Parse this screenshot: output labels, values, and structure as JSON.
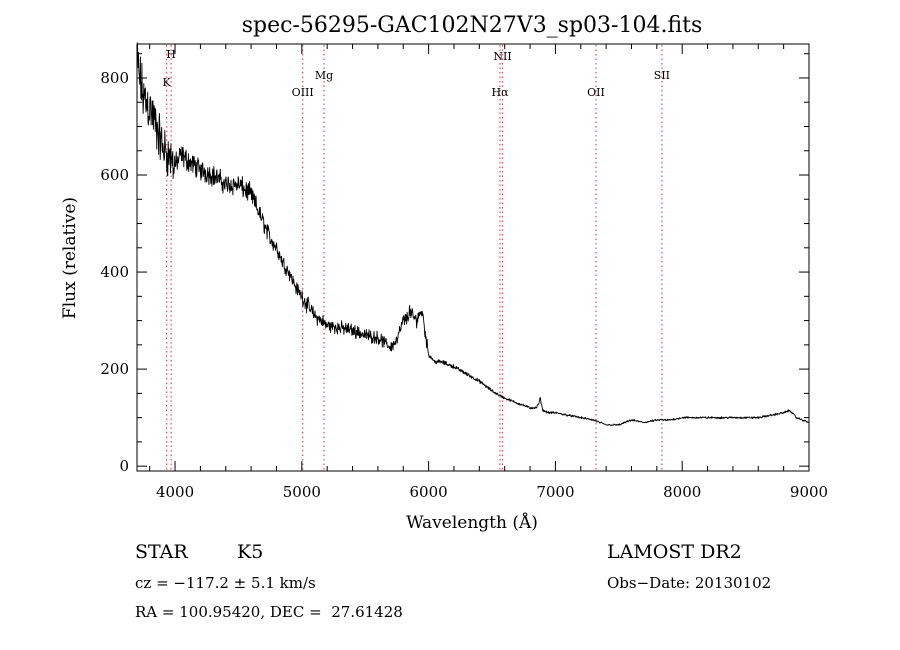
{
  "chart_data": {
    "type": "line",
    "title": "spec-56295-GAC102N27V3_sp03-104.fits",
    "xlabel": "Wavelength (Å)",
    "ylabel": "Flux (relative)",
    "xlim": [
      3700,
      9000
    ],
    "ylim": [
      -10,
      870
    ],
    "x_ticks": [
      4000,
      5000,
      6000,
      7000,
      8000,
      9000
    ],
    "x_tick_labels": [
      "4000",
      "5000",
      "6000",
      "7000",
      "8000",
      "9000"
    ],
    "y_ticks": [
      0,
      200,
      400,
      600,
      800
    ],
    "y_tick_labels": [
      "0",
      "200",
      "400",
      "600",
      "800"
    ],
    "series": [
      {
        "line_color": "#000000",
        "x": [
          3700,
          3750,
          3800,
          3850,
          3900,
          3950,
          4000,
          4050,
          4100,
          4150,
          4200,
          4300,
          4400,
          4500,
          4550,
          4600,
          4650,
          4700,
          4750,
          4800,
          4850,
          4900,
          4950,
          5000,
          5050,
          5100,
          5150,
          5200,
          5300,
          5400,
          5500,
          5600,
          5650,
          5700,
          5750,
          5800,
          5830,
          5850,
          5870,
          5900,
          5920,
          5950,
          5970,
          6000,
          6050,
          6100,
          6200,
          6300,
          6400,
          6500,
          6600,
          6700,
          6800,
          6850,
          6870,
          6880,
          6900,
          6950,
          7000,
          7100,
          7200,
          7300,
          7400,
          7500,
          7550,
          7600,
          7700,
          7800,
          7900,
          8000,
          8200,
          8400,
          8600,
          8700,
          8800,
          8850,
          8900,
          8950,
          9000
        ],
        "y": [
          830,
          760,
          740,
          700,
          660,
          640,
          620,
          640,
          630,
          620,
          610,
          600,
          580,
          580,
          570,
          560,
          530,
          500,
          470,
          450,
          420,
          400,
          370,
          350,
          330,
          310,
          300,
          290,
          285,
          280,
          270,
          265,
          255,
          245,
          260,
          300,
          305,
          320,
          310,
          300,
          310,
          320,
          280,
          230,
          215,
          215,
          205,
          190,
          175,
          155,
          140,
          130,
          120,
          120,
          130,
          140,
          115,
          110,
          110,
          105,
          100,
          95,
          85,
          85,
          90,
          95,
          90,
          95,
          95,
          100,
          100,
          100,
          100,
          105,
          110,
          115,
          100,
          95,
          90
        ]
      }
    ],
    "emission_lines": [
      {
        "name": "K",
        "x": 3934
      },
      {
        "name": "H",
        "x": 3969
      },
      {
        "name": "OIII",
        "x": 5007
      },
      {
        "name": "Mg",
        "x": 5175
      },
      {
        "name": "NII",
        "x": 6583
      },
      {
        "name": "Hα",
        "x": 6563
      },
      {
        "name": "OII",
        "x": 7320
      },
      {
        "name": "SII",
        "x": 7840
      }
    ],
    "emission_line_color": "#e8485a",
    "grid": false,
    "legend": "none"
  },
  "info": {
    "object_class": "STAR",
    "subclass": "K5",
    "survey": "LAMOST DR2",
    "redshift": "cz = −117.2 ± 5.1 km/s",
    "obs_date": "Obs−Date: 20130102",
    "coords": "RA = 100.95420, DEC =  27.61428"
  }
}
